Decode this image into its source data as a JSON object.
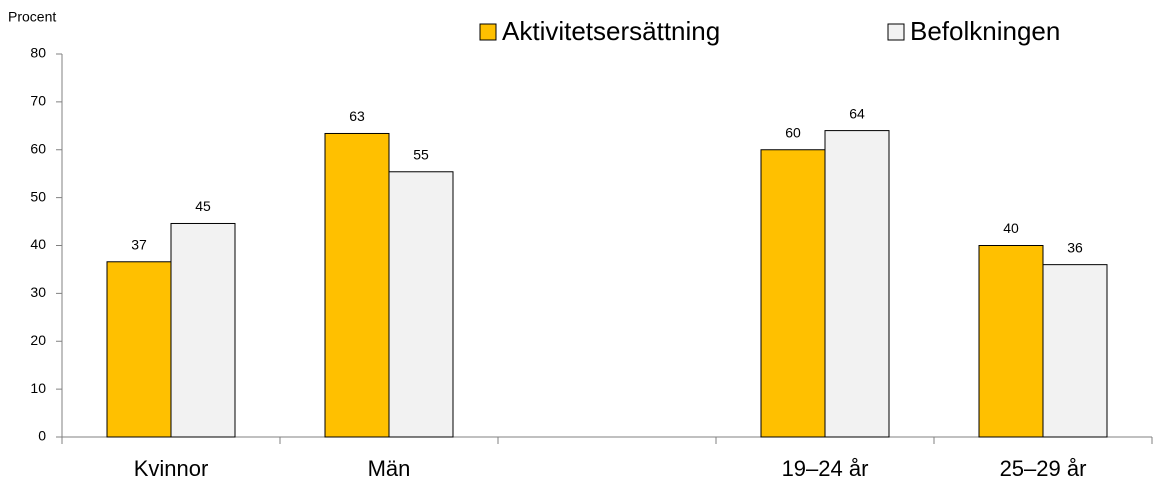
{
  "chart_data": {
    "type": "bar",
    "y_label": "Procent",
    "categories": [
      "Kvinnor",
      "Män",
      null,
      "19–24 år",
      "25–29 år"
    ],
    "series": [
      {
        "name": "Aktivitetsersättning",
        "color": "#FFC000",
        "values": [
          36.6,
          63.4,
          null,
          60,
          40
        ],
        "value_labels": [
          "37",
          "63",
          null,
          "60",
          "40"
        ]
      },
      {
        "name": "Befolkningen",
        "color": "#F2F2F2",
        "values": [
          44.6,
          55.4,
          null,
          64,
          36
        ],
        "value_labels": [
          "45",
          "55",
          null,
          "64",
          "36"
        ]
      }
    ],
    "ylim": [
      0,
      80
    ],
    "yticks": [
      0,
      10,
      20,
      30,
      40,
      50,
      60,
      70,
      80
    ],
    "grid": false,
    "legend": "top"
  }
}
